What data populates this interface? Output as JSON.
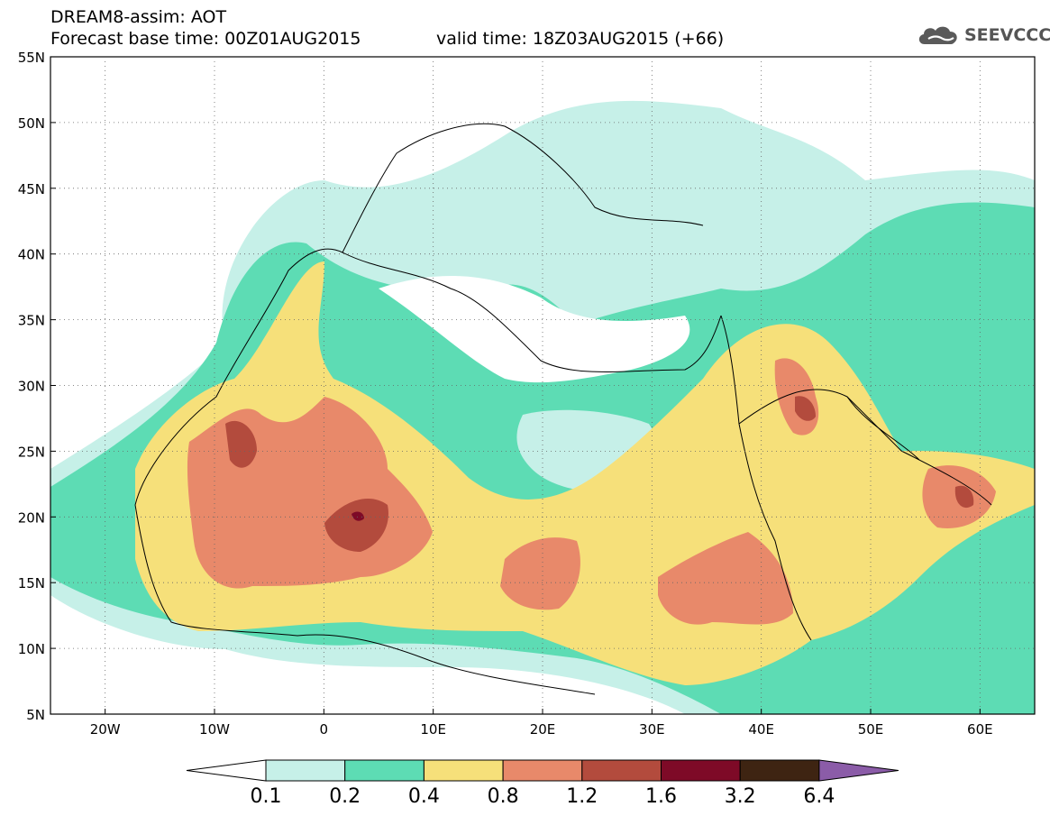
{
  "header": {
    "title": "DREAM8-assim: AOT",
    "base_time": "Forecast base time: 00Z01AUG2015",
    "valid_time": "valid time: 18Z03AUG2015 (+66)"
  },
  "logo": {
    "text": "SEEVCCC",
    "icon": "cloud-icon"
  },
  "map": {
    "lon_range": [
      -25,
      65
    ],
    "lat_range": [
      5,
      55
    ],
    "lat_ticks": [
      "5N",
      "10N",
      "15N",
      "20N",
      "25N",
      "30N",
      "35N",
      "40N",
      "45N",
      "50N",
      "55N"
    ],
    "lon_ticks": [
      "20W",
      "10W",
      "0",
      "10E",
      "20E",
      "30E",
      "40E",
      "50E",
      "60E"
    ]
  },
  "legend": {
    "labels": [
      "0.1",
      "0.2",
      "0.4",
      "0.8",
      "1.2",
      "1.6",
      "3.2",
      "6.4"
    ],
    "colors": [
      "#ffffff",
      "#c6f0e8",
      "#5ddcb4",
      "#f6e07a",
      "#e8896a",
      "#b34b3d",
      "#7e0a27",
      "#3e2412",
      "#8b5ca8"
    ]
  }
}
